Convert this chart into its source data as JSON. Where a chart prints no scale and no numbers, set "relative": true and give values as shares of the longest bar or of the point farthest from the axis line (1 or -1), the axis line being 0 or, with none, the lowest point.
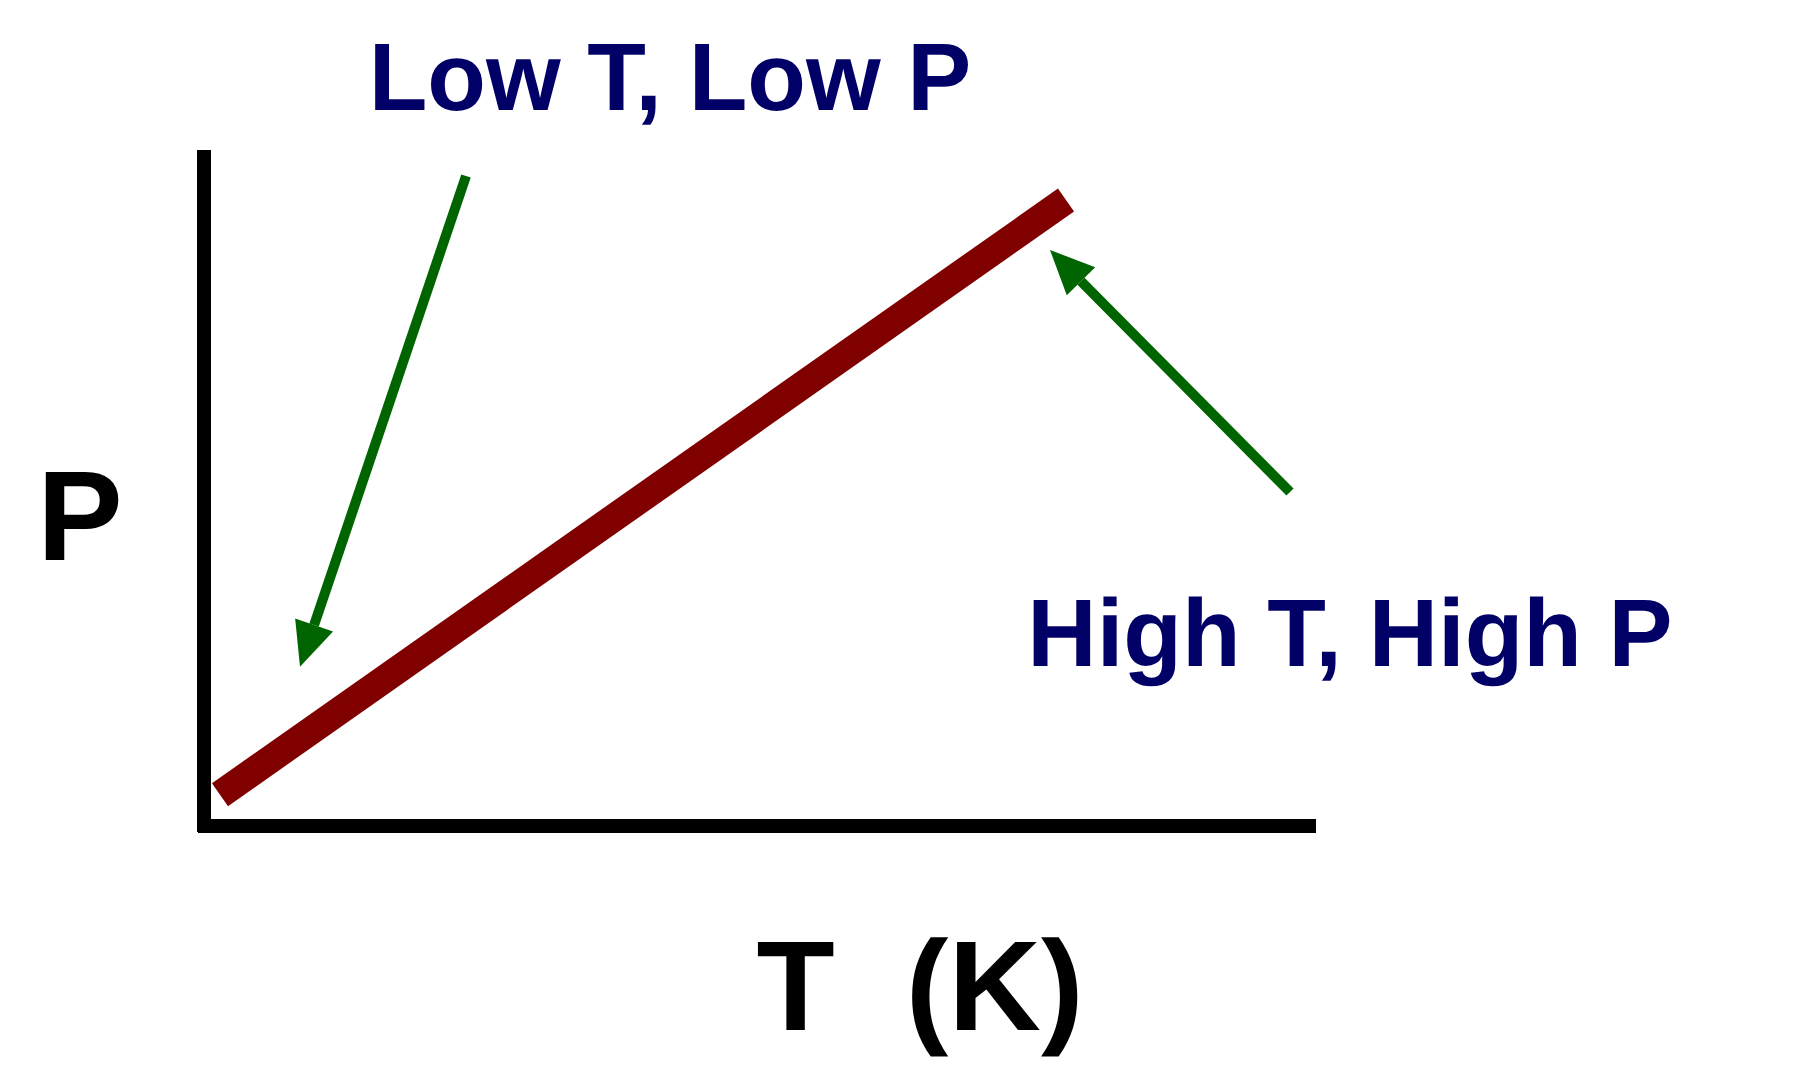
{
  "chart_data": {
    "type": "line",
    "relative": true,
    "categories": [
      null,
      null
    ],
    "series": [
      {
        "color": "#800000",
        "values": [
          0.05,
          1
        ]
      }
    ],
    "xlabel": "T  (K)",
    "ylabel": "P",
    "line_style": "solid",
    "annotations": [
      "Low T, Low P",
      "High T, High P"
    ]
  }
}
